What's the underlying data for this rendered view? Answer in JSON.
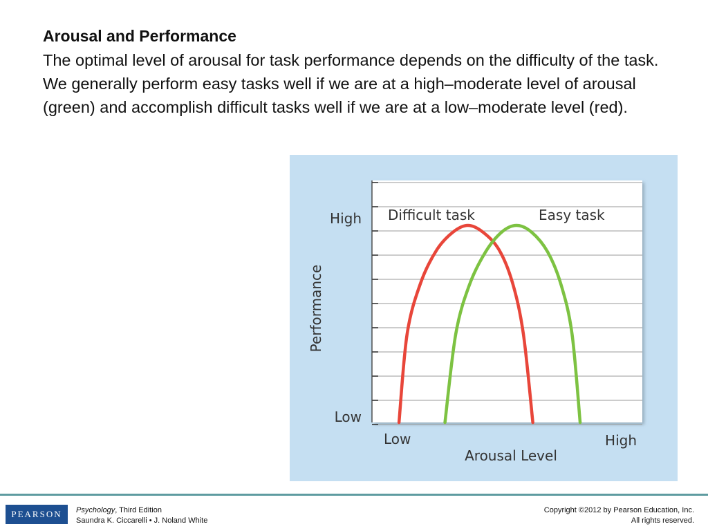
{
  "slide": {
    "title": "Arousal and Performance",
    "description": "The optimal level of arousal for task performance depends on the difficulty of the task. We generally perform easy tasks well if we are at a high–moderate level of arousal (green) and accomplish difficult tasks well if we are at a low–moderate level (red)."
  },
  "chart_data": {
    "type": "line",
    "title": "",
    "xlabel": "Arousal Level",
    "ylabel": "Performance",
    "x_tick_labels": [
      "Low",
      "High"
    ],
    "y_tick_labels": [
      "Low",
      "High"
    ],
    "xlim": [
      0,
      1
    ],
    "ylim": [
      0,
      1
    ],
    "grid": true,
    "series": [
      {
        "name": "Difficult task",
        "color": "#e8463a",
        "x": [
          0.1,
          0.13,
          0.18,
          0.24,
          0.3,
          0.355,
          0.41,
          0.47,
          0.52,
          0.56,
          0.595
        ],
        "y": [
          0.0,
          0.4,
          0.63,
          0.78,
          0.86,
          0.89,
          0.86,
          0.78,
          0.63,
          0.4,
          0.0
        ]
      },
      {
        "name": "Easy task",
        "color": "#7dc242",
        "x": [
          0.27,
          0.31,
          0.36,
          0.42,
          0.48,
          0.535,
          0.59,
          0.65,
          0.7,
          0.74,
          0.77
        ],
        "y": [
          0.0,
          0.4,
          0.62,
          0.77,
          0.86,
          0.89,
          0.86,
          0.77,
          0.62,
          0.4,
          0.0
        ]
      }
    ]
  },
  "footer": {
    "logo_text": "PEARSON",
    "book_title": "Psychology",
    "book_edition": ", Third Edition",
    "authors": "Saundra K. Ciccarelli • J. Noland White",
    "copyright_line1": "Copyright ©2012 by Pearson Education, Inc.",
    "copyright_line2": "All rights reserved."
  }
}
